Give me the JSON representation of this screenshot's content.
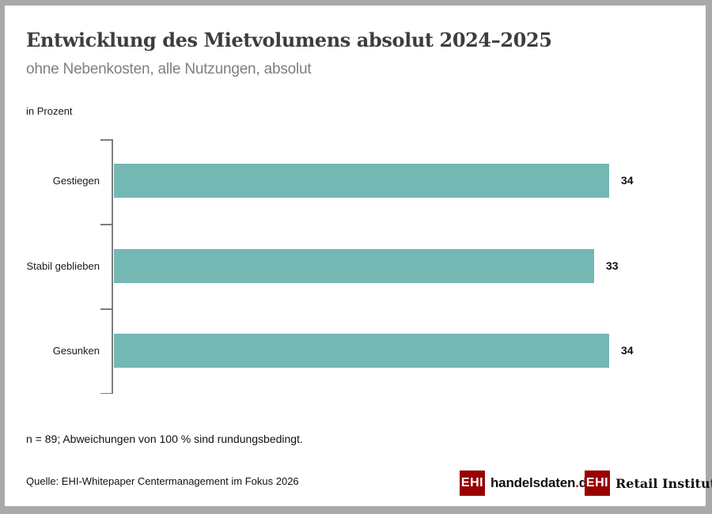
{
  "header": {
    "title": "Entwicklung des Mietvolumens absolut 2024–2025",
    "subtitle": "ohne Nebenkosten, alle Nutzungen, absolut"
  },
  "chart_data": {
    "type": "bar",
    "orientation": "horizontal",
    "unit_label": "in Prozent",
    "categories": [
      "Gestiegen",
      "Stabil geblieben",
      "Gesunken"
    ],
    "values": [
      34,
      33,
      34
    ],
    "xlim": [
      0,
      40
    ],
    "grid": false,
    "legend": false,
    "data_labels": true,
    "value_axis_labels": false,
    "bar_color": "#74B7B3"
  },
  "footer": {
    "footnote": "n = 89; Abweichungen von 100 % sind rundungsbedingt.",
    "source": "Quelle: EHI-Whitepaper Centermanagement im Fokus 2026"
  },
  "logos": {
    "handelsdaten": {
      "ehi": "EHI",
      "name": "handelsdaten",
      "dot": ".",
      "tld": "de"
    },
    "retail_institute": {
      "ehi": "EHI",
      "name": "Retail Institute",
      "registered": "®"
    }
  },
  "colors": {
    "bar": "#74B7B3",
    "ehi_red": "#990000",
    "dot_red": "#C00000",
    "frame_border": "#A9A9A9",
    "axis": "#7D7D7D",
    "title_text": "#3D3D3D",
    "subtitle_text": "#7F7F7F"
  }
}
